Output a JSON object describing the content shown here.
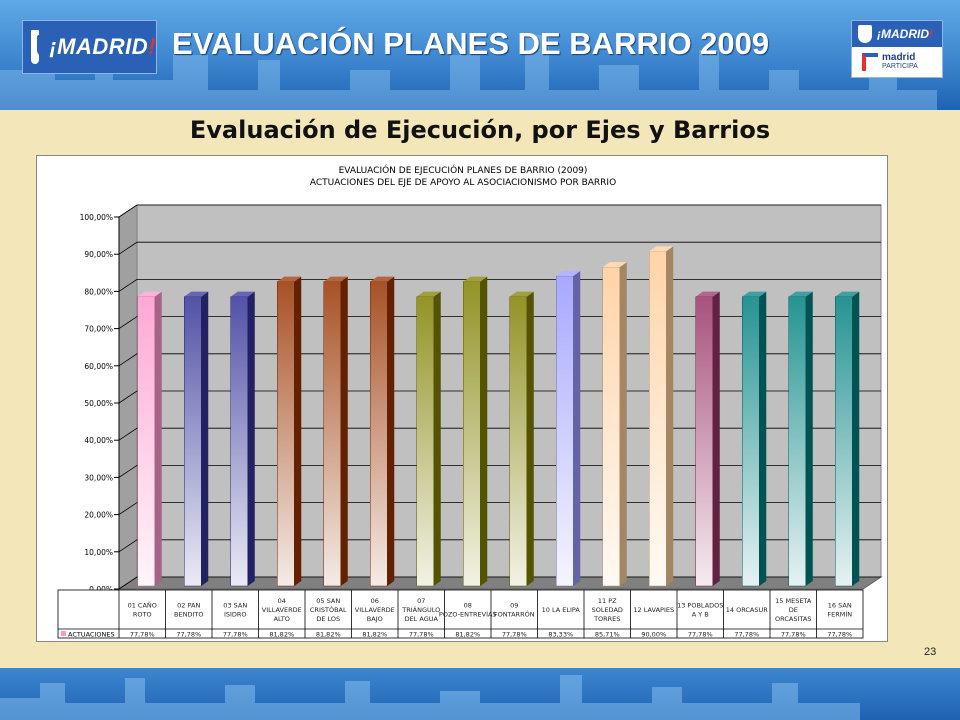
{
  "header": {
    "logo_text": "¡MADRID",
    "logo_mark": "!",
    "title": "EVALUACIÓN PLANES DE BARRIO 2009",
    "right_logo_top": "¡MADRID",
    "right_logo_word1": "madrid",
    "right_logo_word2": "PARTICIPA"
  },
  "subtitle": "Evaluación de Ejecución, por Ejes y Barrios",
  "page_number": "23",
  "colors": {
    "header_blue": "#3d86cf",
    "background": "#f3e6b8",
    "plot_area": "#c0c0c0"
  },
  "chart_data": {
    "type": "bar",
    "title": "EVALUACIÓN DE EJECUCIÓN PLANES DE BARRIO (2009)",
    "subtitle": "ACTUACIONES DEL EJE DE APOYO AL ASOCIACIONISMO POR BARRIO",
    "ylim": [
      0,
      100
    ],
    "yticks": [
      "0,00%",
      "10,00%",
      "20,00%",
      "30,00%",
      "40,00%",
      "50,00%",
      "60,00%",
      "70,00%",
      "80,00%",
      "90,00%",
      "100,00%"
    ],
    "grid": true,
    "legend_position": "data-table",
    "categories": [
      "01 CAÑO ROTO",
      "02 PAN BENDITO",
      "03 SAN ISIDRO",
      "04 VILLAVERDE ALTO",
      "05 SAN CRISTÓBAL DE LOS",
      "06 VILLAVERDE BAJO",
      "07 TRIÁNGULO DEL AGUA",
      "08 POZO-ENTREVÍAS",
      "09 FONTARRÓN",
      "10 LA ELIPA",
      "11 PZ SOLEDAD TORRES",
      "12 LAVAPIES",
      "13 POBLADOS A Y B",
      "14 ORCASUR",
      "15 MESETA DE ORCASITAS",
      "16 SAN FERMÍN"
    ],
    "series": [
      {
        "name": "ACTUACIONES",
        "values": [
          77.78,
          77.78,
          77.78,
          81.82,
          81.82,
          81.82,
          77.78,
          81.82,
          77.78,
          83.33,
          85.71,
          90.0,
          77.78,
          77.78,
          77.78,
          77.78
        ],
        "labels": [
          "77,78%",
          "77,78%",
          "77,78%",
          "81,82%",
          "81,82%",
          "81,82%",
          "77,78%",
          "81,82%",
          "77,78%",
          "83,33%",
          "85,71%",
          "90,00%",
          "77,78%",
          "77,78%",
          "77,78%",
          "77,78%"
        ]
      }
    ],
    "bar_colors": [
      "#ff99cc",
      "#333399",
      "#333399",
      "#993300",
      "#993300",
      "#993300",
      "#808000",
      "#808000",
      "#808000",
      "#9999ff",
      "#ffcc99",
      "#ffcc99",
      "#993366",
      "#008080",
      "#008080",
      "#008080"
    ]
  }
}
